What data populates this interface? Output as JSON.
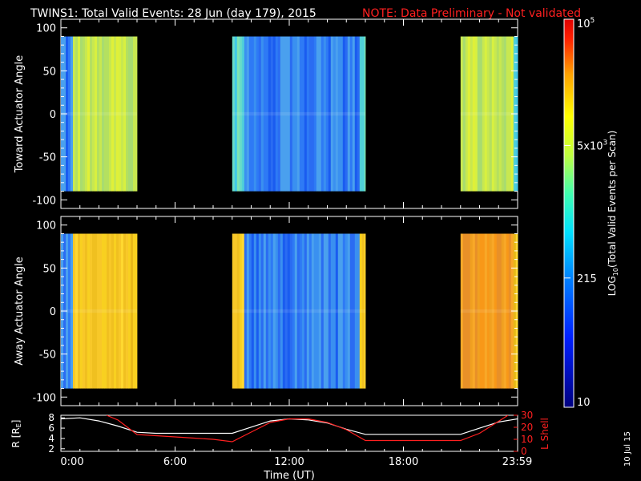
{
  "header": {
    "title": "TWINS1: Total Valid Events: 28 Jun (day 179), 2015",
    "note": "NOTE: Data Preliminary - Not validated"
  },
  "side_date": "10 Jul 15",
  "colors": {
    "background": "#000000",
    "axes": "#ffffff",
    "note": "#ff2020",
    "r_line": "#ffffff",
    "lshell_line": "#ff2020"
  },
  "chart_data": [
    {
      "type": "heatmap",
      "name": "toward-spectrogram",
      "ylabel": "Toward Actuator Angle",
      "ylim": [
        -110,
        110
      ],
      "yticks": [
        "100",
        "50",
        "0",
        "-50",
        "-100"
      ],
      "ytick_values": [
        100,
        50,
        0,
        -50,
        -100
      ],
      "data_ylim": [
        -90,
        90
      ],
      "xlim_hours": [
        0,
        24
      ],
      "blocks": [
        {
          "start_hour": 0.0,
          "end_hour": 4.0,
          "level": "mid-high",
          "edge_level": "low"
        },
        {
          "start_hour": 9.0,
          "end_hour": 16.0,
          "level": "low",
          "edge_level": "mid"
        },
        {
          "start_hour": 21.0,
          "end_hour": 24.0,
          "level": "mid-high",
          "edge_level": "mid"
        }
      ]
    },
    {
      "type": "heatmap",
      "name": "away-spectrogram",
      "ylabel": "Away Actuator Angle",
      "ylim": [
        -110,
        110
      ],
      "yticks": [
        "100",
        "50",
        "0",
        "-50",
        "-100"
      ],
      "ytick_values": [
        100,
        50,
        0,
        -50,
        -100
      ],
      "data_ylim": [
        -90,
        90
      ],
      "xlim_hours": [
        0,
        24
      ],
      "blocks": [
        {
          "start_hour": 0.0,
          "end_hour": 4.0,
          "level": "high",
          "edge_level": "low"
        },
        {
          "start_hour": 9.0,
          "end_hour": 16.0,
          "level": "low",
          "edge_level": "high"
        },
        {
          "start_hour": 21.0,
          "end_hour": 24.0,
          "level": "very-high",
          "edge_level": "high"
        }
      ]
    },
    {
      "type": "line",
      "name": "orbit-panel",
      "xlabel": "Time (UT)",
      "xticks": [
        "0:00",
        "6:00",
        "12:00",
        "18:00",
        "23:59"
      ],
      "xtick_values": [
        0,
        6,
        12,
        18,
        23.98
      ],
      "left_axis": {
        "label": "R [RE]",
        "ylim": [
          1.5,
          8.5
        ],
        "yticks": [
          "8",
          "6",
          "4",
          "2"
        ],
        "ytick_values": [
          8,
          6,
          4,
          2
        ]
      },
      "right_axis": {
        "label": "L Shell",
        "ylim": [
          0,
          30
        ],
        "yticks": [
          "30",
          "20",
          "10",
          "0"
        ],
        "ytick_values": [
          30,
          20,
          10,
          0
        ]
      },
      "series": [
        {
          "name": "R",
          "axis": "left",
          "x": [
            0,
            1,
            2,
            3,
            4,
            5,
            6,
            7,
            8,
            9,
            10,
            11,
            12,
            13,
            14,
            15,
            16,
            17,
            18,
            19,
            20,
            21,
            22,
            23,
            24
          ],
          "y": [
            7.8,
            8.0,
            7.4,
            6.4,
            5.2,
            5.0,
            5.0,
            5.0,
            5.0,
            5.0,
            6.2,
            7.4,
            7.8,
            7.6,
            7.0,
            5.8,
            4.8,
            4.8,
            4.8,
            4.8,
            4.8,
            4.8,
            6.0,
            7.2,
            7.8
          ]
        },
        {
          "name": "L Shell",
          "axis": "right",
          "x": [
            2.4,
            3,
            4,
            5,
            6,
            7,
            8,
            9,
            10,
            11,
            12,
            13,
            14,
            15,
            16,
            17,
            18,
            19,
            20,
            21,
            22,
            23,
            23.5
          ],
          "y": [
            30,
            26,
            14,
            13,
            12,
            11,
            10,
            8,
            16,
            24,
            27,
            27,
            24,
            18,
            9,
            9,
            9,
            9,
            9,
            9,
            15,
            25,
            30
          ]
        }
      ]
    },
    {
      "type": "colorbar",
      "name": "colorbar",
      "label": "LOG10(Total Valid Events per Scan)",
      "scale": "log",
      "range": [
        10,
        100000
      ],
      "ticks": [
        {
          "value": 100000,
          "label": "10^5"
        },
        {
          "value": 5000,
          "label": "5x10^3"
        },
        {
          "value": 215,
          "label": "215"
        },
        {
          "value": 10,
          "label": "10"
        }
      ]
    }
  ]
}
